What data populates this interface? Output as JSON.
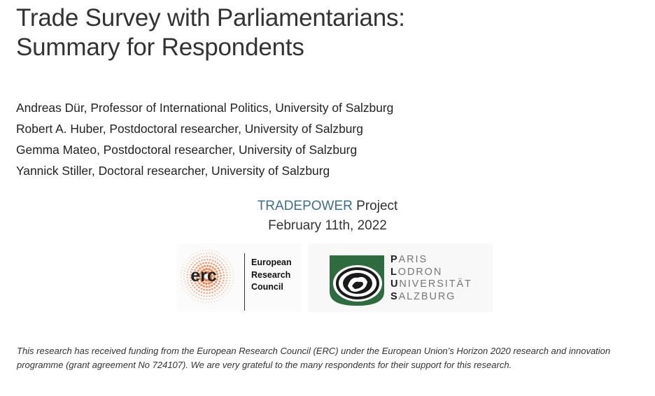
{
  "title": {
    "line1": "Trade Survey with Parliamentarians:",
    "line2": "Summary for Respondents"
  },
  "authors": [
    "Andreas Dür, Professor of International Politics, University of Salzburg",
    "Robert A. Huber, Postdoctoral researcher, University of Salzburg",
    "Gemma Mateo, Postdoctoral researcher, University of Salzburg",
    "Yannick Stiller, Doctoral researcher, University of Salzburg"
  ],
  "project": {
    "name": "TRADEPOWER",
    "suffix": "Project",
    "date": "February 11th, 2022",
    "name_color": "#3f6f84"
  },
  "logos": {
    "erc": {
      "mark": "erc",
      "line1": "European",
      "line2": "Research",
      "line3": "Council",
      "dot_color": "#e06c2e"
    },
    "plus": {
      "lines": [
        {
          "initial": "P",
          "rest": "ARIS"
        },
        {
          "initial": "L",
          "rest": "ODRON"
        },
        {
          "initial": "U",
          "rest": "NIVERSITÄT"
        },
        {
          "initial": "S",
          "rest": "ALZBURG"
        }
      ],
      "green_color": "#2e6b3f",
      "seal_icon": "lion-seal-icon"
    }
  },
  "footer": "This research has received funding from the European Research Council (ERC) under the European Union’s Horizon 2020 research and innovation programme (grant agreement No 724107). We are very grateful to the many respondents for their support for this research."
}
